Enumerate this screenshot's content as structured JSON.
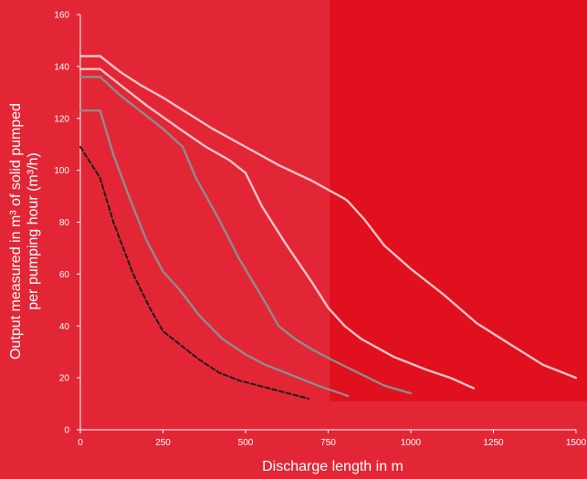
{
  "colors": {
    "background": "#e32636",
    "highlight_band": "#e0101e",
    "axis": "#ffffff",
    "series_light": "#f4c3c5",
    "series_grey": "#8c8c8c",
    "series_dashed": "#1c1c1c",
    "text": "#ffffff"
  },
  "chart_data": {
    "type": "line",
    "xlabel": "Discharge  length in m",
    "ylabel_line1": "Output measured in m³ of solid pumped",
    "ylabel_line2": "per pumping hour (m³/h)",
    "xlim": [
      0,
      1500
    ],
    "ylim": [
      0,
      160
    ],
    "xticks": [
      0,
      250,
      500,
      750,
      1000,
      1250,
      1500
    ],
    "yticks": [
      0,
      20,
      40,
      60,
      80,
      100,
      120,
      140,
      160
    ],
    "grid": false,
    "highlight_region": {
      "x_from": 755,
      "x_to": 1500
    },
    "series": [
      {
        "style": "light",
        "points": [
          [
            0,
            144
          ],
          [
            60,
            144
          ],
          [
            120,
            138
          ],
          [
            180,
            133
          ],
          [
            250,
            128
          ],
          [
            300,
            124
          ],
          [
            400,
            116
          ],
          [
            500,
            109
          ],
          [
            600,
            102
          ],
          [
            700,
            96
          ],
          [
            800,
            89
          ],
          [
            810,
            88
          ],
          [
            860,
            81
          ],
          [
            920,
            71
          ],
          [
            1000,
            62
          ],
          [
            1100,
            52
          ],
          [
            1200,
            41
          ],
          [
            1300,
            33
          ],
          [
            1400,
            25
          ],
          [
            1500,
            20
          ]
        ]
      },
      {
        "style": "light",
        "points": [
          [
            0,
            139
          ],
          [
            60,
            139
          ],
          [
            120,
            133
          ],
          [
            200,
            125
          ],
          [
            300,
            116
          ],
          [
            380,
            109
          ],
          [
            450,
            104
          ],
          [
            500,
            99
          ],
          [
            550,
            86
          ],
          [
            620,
            72
          ],
          [
            700,
            57
          ],
          [
            750,
            47
          ],
          [
            800,
            40
          ],
          [
            850,
            35
          ],
          [
            950,
            28
          ],
          [
            1050,
            23
          ],
          [
            1120,
            20
          ],
          [
            1190,
            16
          ]
        ]
      },
      {
        "style": "grey",
        "points": [
          [
            0,
            136
          ],
          [
            60,
            136
          ],
          [
            120,
            129
          ],
          [
            200,
            121
          ],
          [
            250,
            116
          ],
          [
            310,
            109
          ],
          [
            350,
            97
          ],
          [
            420,
            81
          ],
          [
            480,
            66
          ],
          [
            560,
            49
          ],
          [
            600,
            40
          ],
          [
            650,
            35
          ],
          [
            700,
            31
          ],
          [
            760,
            27
          ],
          [
            840,
            22
          ],
          [
            920,
            17
          ],
          [
            1000,
            14
          ]
        ]
      },
      {
        "style": "grey",
        "points": [
          [
            0,
            123
          ],
          [
            60,
            123
          ],
          [
            100,
            106
          ],
          [
            150,
            89
          ],
          [
            200,
            73
          ],
          [
            250,
            61
          ],
          [
            300,
            54
          ],
          [
            360,
            44
          ],
          [
            430,
            35
          ],
          [
            500,
            29
          ],
          [
            560,
            25
          ],
          [
            640,
            21
          ],
          [
            720,
            17
          ],
          [
            810,
            13
          ]
        ]
      },
      {
        "style": "dashed",
        "points": [
          [
            0,
            109
          ],
          [
            60,
            97
          ],
          [
            100,
            80
          ],
          [
            160,
            60
          ],
          [
            210,
            47
          ],
          [
            250,
            38
          ],
          [
            310,
            32
          ],
          [
            360,
            27
          ],
          [
            420,
            22
          ],
          [
            480,
            19
          ],
          [
            540,
            17
          ],
          [
            600,
            15
          ],
          [
            690,
            12
          ]
        ]
      }
    ]
  }
}
